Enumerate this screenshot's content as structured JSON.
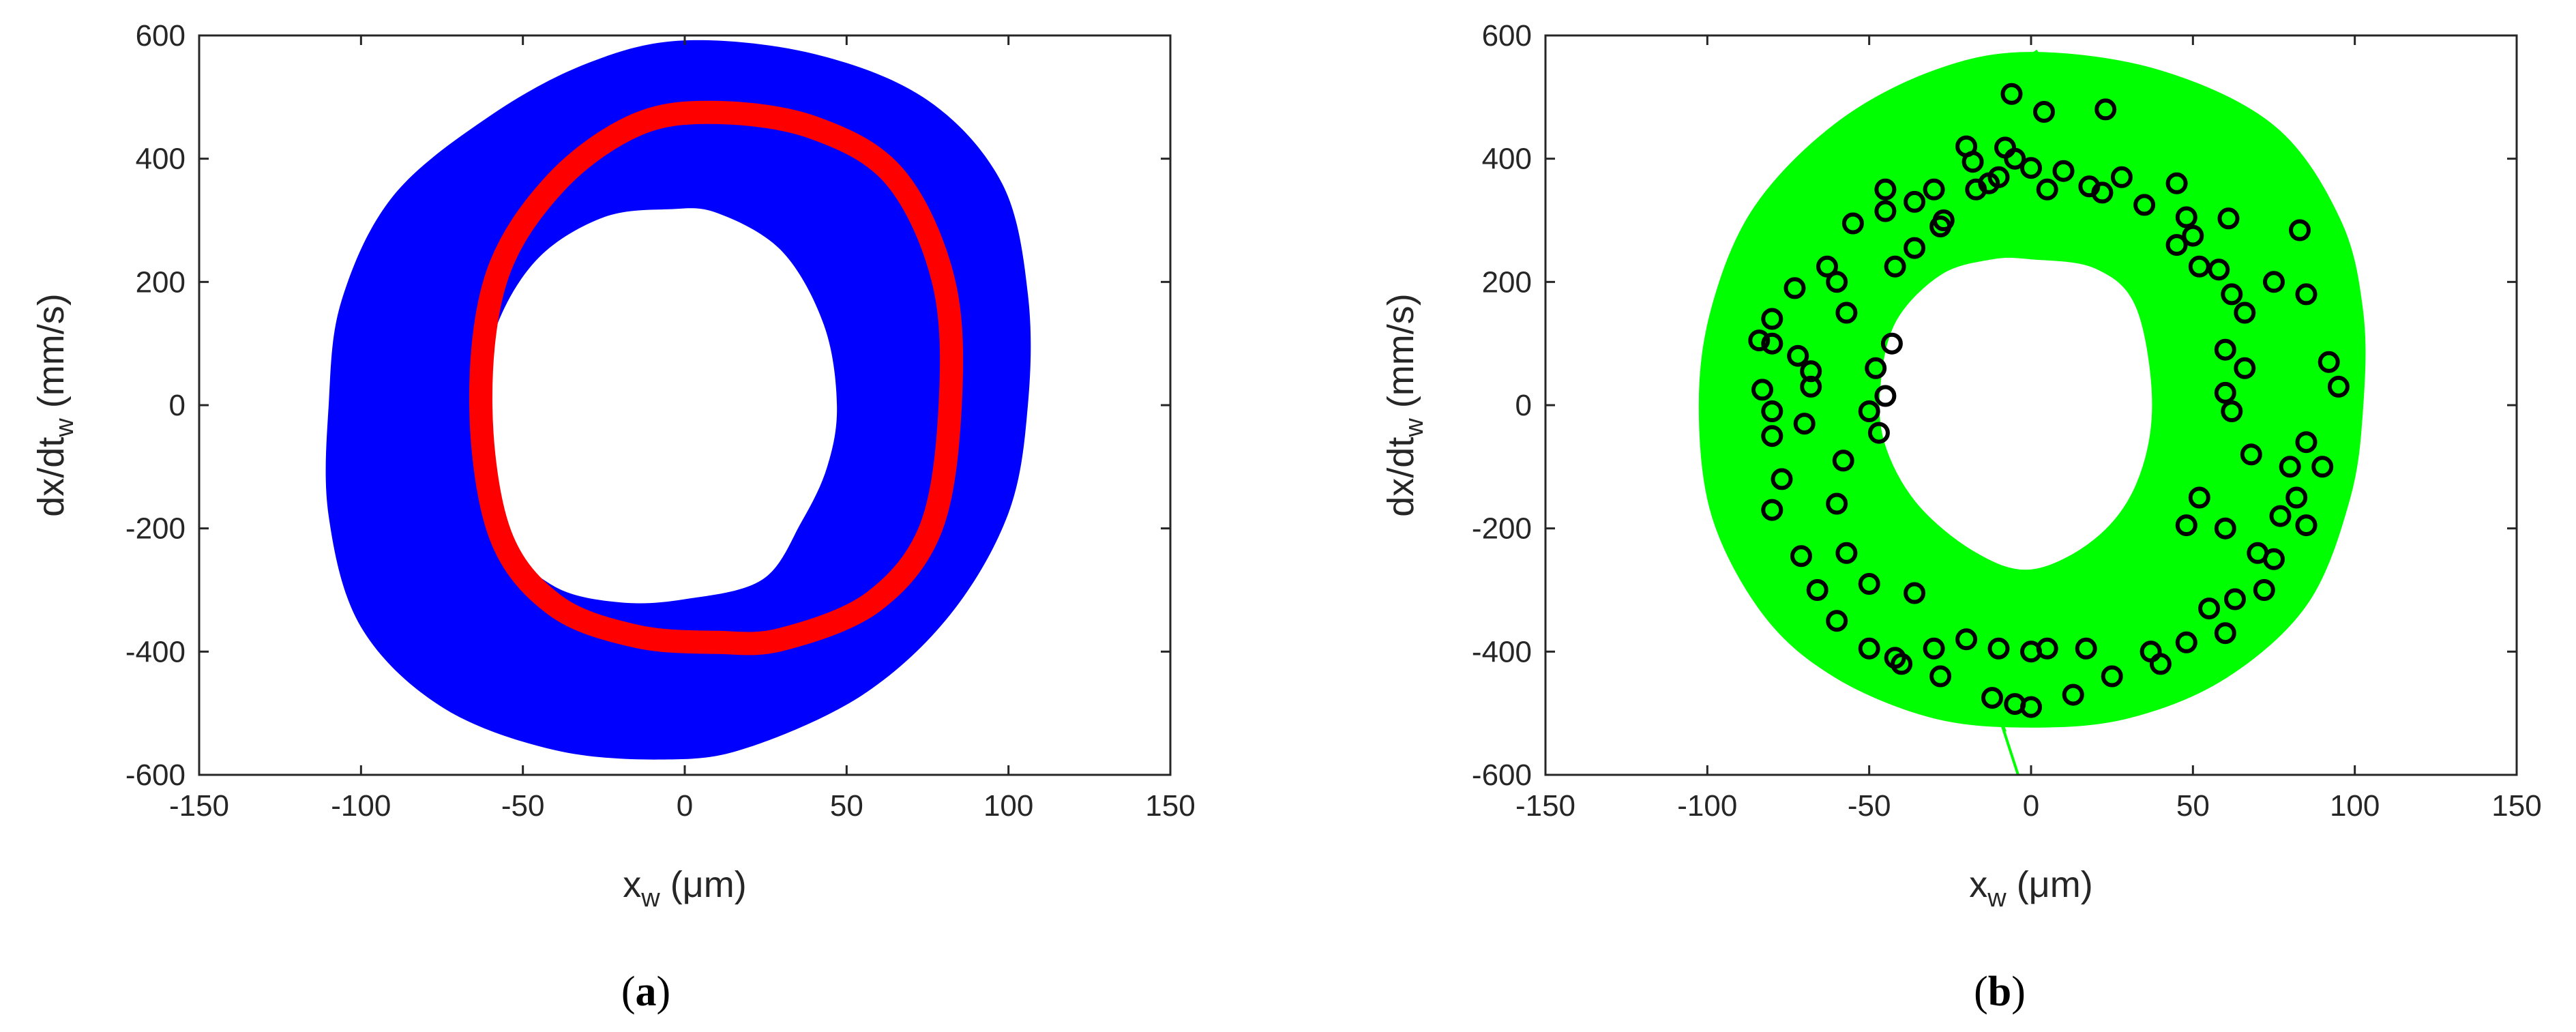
{
  "chart_data": [
    {
      "type": "line",
      "panel_label": {
        "open": "(",
        "letter": "a",
        "close": ")"
      },
      "xlabel": {
        "main": "x",
        "sub": "w",
        "rest": " (μm)"
      },
      "ylabel": {
        "main": "dx/dt",
        "sub": "w",
        "rest": " (mm/s)"
      },
      "xlim": [
        -150,
        150
      ],
      "ylim": [
        -600,
        600
      ],
      "xticks": [
        -150,
        -100,
        -50,
        0,
        50,
        100,
        150
      ],
      "yticks": [
        -600,
        -400,
        -200,
        0,
        200,
        400,
        600
      ],
      "grid": false,
      "series": [
        {
          "style": "filled-orbit-band",
          "color": "#0000ff",
          "outer_boundary": [
            [
              0,
              592
            ],
            [
              40,
              570
            ],
            [
              75,
              495
            ],
            [
              98,
              360
            ],
            [
              106,
              180
            ],
            [
              106,
              0
            ],
            [
              100,
              -175
            ],
            [
              82,
              -340
            ],
            [
              55,
              -470
            ],
            [
              20,
              -555
            ],
            [
              -5,
              -575
            ],
            [
              -40,
              -560
            ],
            [
              -75,
              -490
            ],
            [
              -100,
              -360
            ],
            [
              -110,
              -180
            ],
            [
              -110,
              0
            ],
            [
              -106,
              170
            ],
            [
              -90,
              340
            ],
            [
              -60,
              470
            ],
            [
              -30,
              555
            ]
          ],
          "inner_boundary": [
            [
              -5,
              318
            ],
            [
              10,
              312
            ],
            [
              30,
              250
            ],
            [
              43,
              130
            ],
            [
              47,
              0
            ],
            [
              44,
              -100
            ],
            [
              36,
              -190
            ],
            [
              24,
              -283
            ],
            [
              0,
              -315
            ],
            [
              -20,
              -320
            ],
            [
              -40,
              -295
            ],
            [
              -55,
              -220
            ],
            [
              -62,
              -100
            ],
            [
              -63,
              0
            ],
            [
              -58,
              130
            ],
            [
              -45,
              240
            ],
            [
              -25,
              305
            ]
          ]
        },
        {
          "style": "thick-ring",
          "color": "#ff0000",
          "points": [
            [
              10,
              475
            ],
            [
              40,
              450
            ],
            [
              65,
              370
            ],
            [
              80,
              200
            ],
            [
              82,
              0
            ],
            [
              76,
              -200
            ],
            [
              58,
              -320
            ],
            [
              30,
              -380
            ],
            [
              10,
              -385
            ],
            [
              -15,
              -375
            ],
            [
              -40,
              -325
            ],
            [
              -57,
              -210
            ],
            [
              -63,
              0
            ],
            [
              -58,
              210
            ],
            [
              -40,
              360
            ],
            [
              -15,
              455
            ]
          ]
        }
      ]
    },
    {
      "type": "scatter",
      "panel_label": {
        "open": "(",
        "letter": "b",
        "close": ")"
      },
      "xlabel": {
        "main": "x",
        "sub": "w",
        "rest": " (μm)"
      },
      "ylabel": {
        "main": "dx/dt",
        "sub": "w",
        "rest": " (mm/s)"
      },
      "xlim": [
        -150,
        150
      ],
      "ylim": [
        -600,
        600
      ],
      "xticks": [
        -150,
        -100,
        -50,
        0,
        50,
        100,
        150
      ],
      "yticks": [
        -600,
        -400,
        -200,
        0,
        200,
        400,
        600
      ],
      "grid": false,
      "series": [
        {
          "style": "orbit-trajectory-band",
          "color": "#00ff00",
          "outer_boundary": [
            [
              0,
              570
            ],
            [
              40,
              540
            ],
            [
              75,
              450
            ],
            [
              95,
              300
            ],
            [
              102,
              150
            ],
            [
              102,
              0
            ],
            [
              98,
              -150
            ],
            [
              85,
              -320
            ],
            [
              60,
              -440
            ],
            [
              30,
              -505
            ],
            [
              0,
              -520
            ],
            [
              -30,
              -505
            ],
            [
              -60,
              -440
            ],
            [
              -82,
              -340
            ],
            [
              -98,
              -180
            ],
            [
              -102,
              0
            ],
            [
              -98,
              160
            ],
            [
              -85,
              320
            ],
            [
              -60,
              455
            ],
            [
              -30,
              540
            ]
          ],
          "inner_boundary": [
            [
              0,
              240
            ],
            [
              20,
              225
            ],
            [
              33,
              160
            ],
            [
              38,
              0
            ],
            [
              33,
              -130
            ],
            [
              20,
              -220
            ],
            [
              0,
              -270
            ],
            [
              -18,
              -240
            ],
            [
              -36,
              -160
            ],
            [
              -46,
              -60
            ],
            [
              -47,
              40
            ],
            [
              -42,
              140
            ],
            [
              -28,
              215
            ],
            [
              -12,
              240
            ]
          ],
          "escape_segment": [
            [
              -8,
              -530
            ],
            [
              -12,
              -470
            ],
            [
              -4,
              -600
            ]
          ],
          "escape_top": [
            [
              2,
              575
            ],
            [
              -4,
              555
            ]
          ]
        },
        {
          "style": "open-circle-markers",
          "color": "#000000",
          "points": [
            [
              -6,
              505
            ],
            [
              4,
              476
            ],
            [
              23,
              480
            ],
            [
              -20,
              420
            ],
            [
              -8,
              418
            ],
            [
              -5,
              400
            ],
            [
              0,
              385
            ],
            [
              10,
              380
            ],
            [
              22,
              345
            ],
            [
              35,
              325
            ],
            [
              48,
              305
            ],
            [
              61,
              303
            ],
            [
              83,
              284
            ],
            [
              -45,
              315
            ],
            [
              -55,
              295
            ],
            [
              -63,
              225
            ],
            [
              -73,
              190
            ],
            [
              -80,
              140
            ],
            [
              -84,
              105
            ],
            [
              -80,
              100
            ],
            [
              -72,
              80
            ],
            [
              -68,
              55
            ],
            [
              -68,
              30
            ],
            [
              -83,
              25
            ],
            [
              -80,
              -10
            ],
            [
              -70,
              -30
            ],
            [
              -80,
              -50
            ],
            [
              -77,
              -120
            ],
            [
              -80,
              -170
            ],
            [
              -71,
              -245
            ],
            [
              -66,
              -300
            ],
            [
              -60,
              -350
            ],
            [
              -50,
              -395
            ],
            [
              -40,
              -420
            ],
            [
              -28,
              -440
            ],
            [
              -12,
              -475
            ],
            [
              0,
              -490
            ],
            [
              -5,
              -485
            ],
            [
              13,
              -470
            ],
            [
              25,
              -440
            ],
            [
              40,
              -420
            ],
            [
              60,
              -370
            ],
            [
              72,
              -300
            ],
            [
              75,
              -250
            ],
            [
              85,
              -195
            ],
            [
              82,
              -150
            ],
            [
              90,
              -100
            ],
            [
              85,
              -60
            ],
            [
              95,
              30
            ],
            [
              92,
              70
            ],
            [
              85,
              180
            ],
            [
              75,
              200
            ],
            [
              66,
              150
            ],
            [
              60,
              90
            ],
            [
              66,
              60
            ],
            [
              60,
              20
            ],
            [
              62,
              -10
            ],
            [
              68,
              -80
            ],
            [
              80,
              -100
            ],
            [
              52,
              -150
            ],
            [
              48,
              -195
            ],
            [
              -42,
              -410
            ],
            [
              -30,
              -395
            ],
            [
              -20,
              -380
            ],
            [
              -10,
              -395
            ],
            [
              0,
              -400
            ],
            [
              5,
              -395
            ],
            [
              17,
              -395
            ],
            [
              37,
              -400
            ],
            [
              48,
              -385
            ],
            [
              55,
              -330
            ],
            [
              63,
              -315
            ],
            [
              70,
              -240
            ],
            [
              60,
              -200
            ],
            [
              77,
              -180
            ],
            [
              -36,
              -305
            ],
            [
              -50,
              -290
            ],
            [
              -57,
              -240
            ],
            [
              -60,
              -160
            ],
            [
              -58,
              -90
            ],
            [
              -47,
              -45
            ],
            [
              -50,
              -10
            ],
            [
              -45,
              15
            ],
            [
              -48,
              60
            ],
            [
              -43,
              100
            ],
            [
              -57,
              150
            ],
            [
              -60,
              200
            ],
            [
              -42,
              225
            ],
            [
              -36,
              255
            ],
            [
              -28,
              290
            ],
            [
              -36,
              330
            ],
            [
              -30,
              350
            ],
            [
              -17,
              350
            ],
            [
              -10,
              370
            ],
            [
              5,
              350
            ],
            [
              18,
              355
            ],
            [
              28,
              370
            ],
            [
              45,
              360
            ],
            [
              50,
              275
            ],
            [
              45,
              260
            ],
            [
              52,
              225
            ],
            [
              58,
              220
            ],
            [
              62,
              180
            ],
            [
              -18,
              395
            ],
            [
              -13,
              360
            ],
            [
              -27,
              300
            ],
            [
              -45,
              350
            ]
          ]
        }
      ]
    }
  ]
}
